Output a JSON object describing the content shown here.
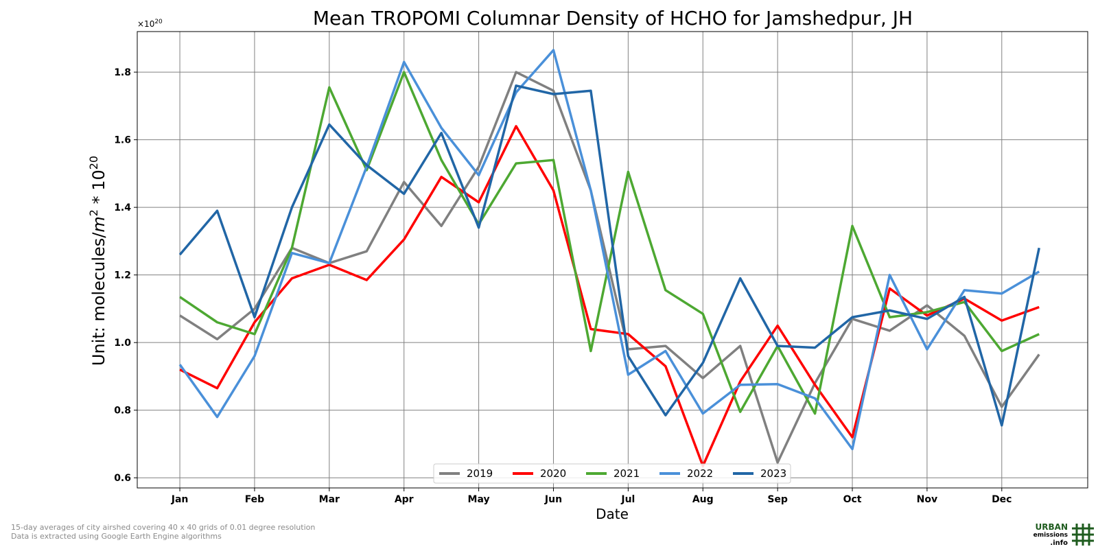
{
  "chart_data": {
    "type": "line",
    "title": "Mean TROPOMI Columnar Density of HCHO for Jamshedpur, JH",
    "xlabel": "Date",
    "ylabel_prefix": "Unit: molecules/",
    "ylabel_unit_base": "m",
    "ylabel_unit_exp": "2",
    "ylabel_mid": " * 10",
    "ylabel_exp": "20",
    "offset_text_base": "×10",
    "offset_text_exp": "20",
    "x_tick_labels": [
      "Jan",
      "Feb",
      "Mar",
      "Apr",
      "May",
      "Jun",
      "Jul",
      "Aug",
      "Sep",
      "Oct",
      "Nov",
      "Dec"
    ],
    "y_tick_labels": [
      "0.6",
      "0.8",
      "1.0",
      "1.2",
      "1.4",
      "1.6",
      "1.8"
    ],
    "y_ticks": [
      0.6,
      0.8,
      1.0,
      1.2,
      1.4,
      1.6,
      1.8
    ],
    "ylim": [
      0.57,
      1.92
    ],
    "x_unit": "month (1 = Jan, 1.5 = mid-Jan)",
    "x": [
      1,
      1.5,
      2,
      2.5,
      3,
      3.5,
      4,
      4.5,
      5,
      5.5,
      6,
      6.5,
      7,
      7.5,
      8,
      8.5,
      9,
      9.5,
      10,
      10.5,
      11,
      11.5,
      12,
      12.5
    ],
    "xlim": [
      0.43,
      13.15
    ],
    "grid": true,
    "legend_position": "bottom-center",
    "series": [
      {
        "name": "2019",
        "color": "#808080",
        "values": [
          1.08,
          1.01,
          1.1,
          1.28,
          1.235,
          1.27,
          1.475,
          1.345,
          1.52,
          1.8,
          1.745,
          1.45,
          0.98,
          0.99,
          0.895,
          0.99,
          0.645,
          0.88,
          1.07,
          1.035,
          1.11,
          1.02,
          0.81,
          0.965
        ]
      },
      {
        "name": "2020",
        "color": "#ff0000",
        "values": [
          0.92,
          0.865,
          1.06,
          1.19,
          1.23,
          1.185,
          1.305,
          1.49,
          1.415,
          1.64,
          1.45,
          1.04,
          1.025,
          0.93,
          0.635,
          0.885,
          1.05,
          0.875,
          0.72,
          1.16,
          1.08,
          1.13,
          1.065,
          1.105
        ]
      },
      {
        "name": "2021",
        "color": "#4da832",
        "values": [
          1.135,
          1.06,
          1.025,
          1.28,
          1.755,
          1.51,
          1.8,
          1.54,
          1.35,
          1.53,
          1.54,
          0.975,
          1.505,
          1.155,
          1.085,
          0.795,
          0.99,
          0.79,
          1.345,
          1.075,
          1.09,
          1.12,
          0.975,
          1.025
        ]
      },
      {
        "name": "2022",
        "color": "#4a90d9",
        "values": [
          0.935,
          0.78,
          0.96,
          1.265,
          1.235,
          1.52,
          1.83,
          1.635,
          1.495,
          1.74,
          1.865,
          1.45,
          0.905,
          0.975,
          0.79,
          0.875,
          0.877,
          0.835,
          0.685,
          1.2,
          0.98,
          1.155,
          1.145,
          1.21
        ]
      },
      {
        "name": "2023",
        "color": "#2166a6",
        "values": [
          1.26,
          1.39,
          1.075,
          1.4,
          1.645,
          1.525,
          1.44,
          1.62,
          1.34,
          1.76,
          1.735,
          1.745,
          0.96,
          0.785,
          0.94,
          1.19,
          0.99,
          0.985,
          1.075,
          1.095,
          1.07,
          1.135,
          0.755,
          1.28
        ]
      }
    ]
  },
  "footnote": {
    "line1": "15-day averages of city airshed covering 40 x 40 grids of 0.01 degree resolution",
    "line2": "Data is extracted using Google Earth Engine algorithms"
  },
  "logo": {
    "line1": "URBAN",
    "line2": "emissions",
    "line3": ".info",
    "color_dark_green": "#1f5c1f"
  }
}
